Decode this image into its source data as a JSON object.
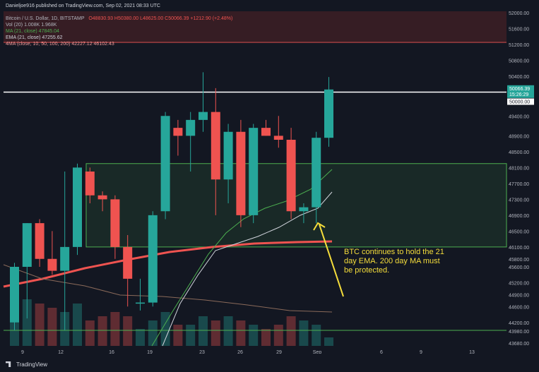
{
  "header": {
    "publisher": "Danieljoe916 published on TradingView.com, Sep 02, 2021 08:33 UTC",
    "symbol_line": "Bitcoin / U.S. Dollar, 1D, BITSTAMP",
    "ohlc": "O48830.93  H50380.00  L48625.00  C50066.39  +1212.90 (+2.48%)",
    "vol": "Vol (20)  1.008K  1.968K",
    "ma": "MA (21, close)  47845.04",
    "ema": "EMA (21, close)  47255.62",
    "fourma": "4MA (close, 10, 50, 100, 200)  42227.12  46102.43"
  },
  "footer": {
    "brand": "TradingView"
  },
  "annotation": "BTC continues to hold the 21 day EMA. 200 day MA must be protected.",
  "colors": {
    "up": "#26a69a",
    "down": "#ef5350",
    "zone": "#4caf50",
    "ema": "#ef5350",
    "ma21": "#4caf50",
    "ma50": "#c8c8c8",
    "arrow": "#f5dd3b",
    "bg": "#131722"
  },
  "chart_data": {
    "type": "candlestick",
    "price_axis_ticks": [
      43680,
      43980,
      44200,
      44600,
      44900,
      45200,
      45600,
      45800,
      46100,
      46500,
      46900,
      47300,
      47700,
      48100,
      48500,
      48900,
      49400,
      49800,
      50000,
      50400,
      50800,
      51200,
      51600,
      52000
    ],
    "price_axis_labels": [
      "43680.00",
      "43980.00",
      "44200.00",
      "44600.00",
      "44900.00",
      "45200.00",
      "45600.00",
      "45800.00",
      "46100.00",
      "46500.00",
      "46900.00",
      "47300.00",
      "47700.00",
      "48100.00",
      "48500.00",
      "48900.00",
      "49400.00",
      "49800.00",
      "50000.00",
      "50400.00",
      "50800.00",
      "51200.00",
      "51600.00",
      "52000.00"
    ],
    "x_tick_labels": [
      "9",
      "12",
      "16",
      "19",
      "23",
      "26",
      "29",
      "Sep",
      "6",
      "9",
      "13"
    ],
    "current_price": {
      "value": "50066.39",
      "countdown": "15:26:29"
    },
    "resistance_level": {
      "label": "50000.00",
      "value": 50000
    },
    "candles": [
      {
        "o": 44200,
        "h": 45700,
        "l": 44000,
        "c": 45600
      },
      {
        "o": 45600,
        "h": 46700,
        "l": 44300,
        "c": 46700
      },
      {
        "o": 46700,
        "h": 46800,
        "l": 45600,
        "c": 45800
      },
      {
        "o": 45800,
        "h": 46500,
        "l": 45400,
        "c": 45500
      },
      {
        "o": 45500,
        "h": 48000,
        "l": 44000,
        "c": 46100
      },
      {
        "o": 46100,
        "h": 48200,
        "l": 45900,
        "c": 48100
      },
      {
        "o": 48000,
        "h": 48100,
        "l": 47200,
        "c": 47400
      },
      {
        "o": 47400,
        "h": 47500,
        "l": 47000,
        "c": 47300
      },
      {
        "o": 47300,
        "h": 47400,
        "l": 45800,
        "c": 46100
      },
      {
        "o": 46100,
        "h": 46400,
        "l": 44600,
        "c": 45300
      },
      {
        "o": 44700,
        "h": 45300,
        "l": 44500,
        "c": 44700
      },
      {
        "o": 44700,
        "h": 47000,
        "l": 44600,
        "c": 46900
      },
      {
        "o": 47000,
        "h": 49500,
        "l": 46800,
        "c": 49400
      },
      {
        "o": 49100,
        "h": 49300,
        "l": 48400,
        "c": 48900
      },
      {
        "o": 48900,
        "h": 49500,
        "l": 48000,
        "c": 49300
      },
      {
        "o": 49300,
        "h": 50500,
        "l": 49000,
        "c": 49500
      },
      {
        "o": 49500,
        "h": 50100,
        "l": 46900,
        "c": 47800
      },
      {
        "o": 47800,
        "h": 49200,
        "l": 47200,
        "c": 49000
      },
      {
        "o": 49000,
        "h": 49300,
        "l": 46600,
        "c": 46900
      },
      {
        "o": 46900,
        "h": 49200,
        "l": 46700,
        "c": 49100
      },
      {
        "o": 49100,
        "h": 49300,
        "l": 48900,
        "c": 48900
      },
      {
        "o": 48900,
        "h": 49400,
        "l": 48600,
        "c": 48800
      },
      {
        "o": 48800,
        "h": 49100,
        "l": 46800,
        "c": 47000
      },
      {
        "o": 47000,
        "h": 47200,
        "l": 46700,
        "c": 47100
      },
      {
        "o": 47100,
        "h": 49000,
        "l": 46700,
        "c": 48850
      },
      {
        "o": 48850,
        "h": 50380,
        "l": 48625,
        "c": 50066
      }
    ],
    "support_zone": {
      "top": 48200,
      "bottom": 46100
    },
    "volume": [
      0.9,
      1.1,
      1.0,
      0.9,
      0.8,
      1.0,
      0.6,
      0.7,
      0.8,
      0.7,
      0.4,
      0.6,
      0.8,
      0.5,
      0.5,
      0.7,
      0.6,
      0.7,
      0.6,
      0.5,
      0.4,
      0.5,
      0.7,
      0.6,
      0.5,
      0.2
    ]
  }
}
